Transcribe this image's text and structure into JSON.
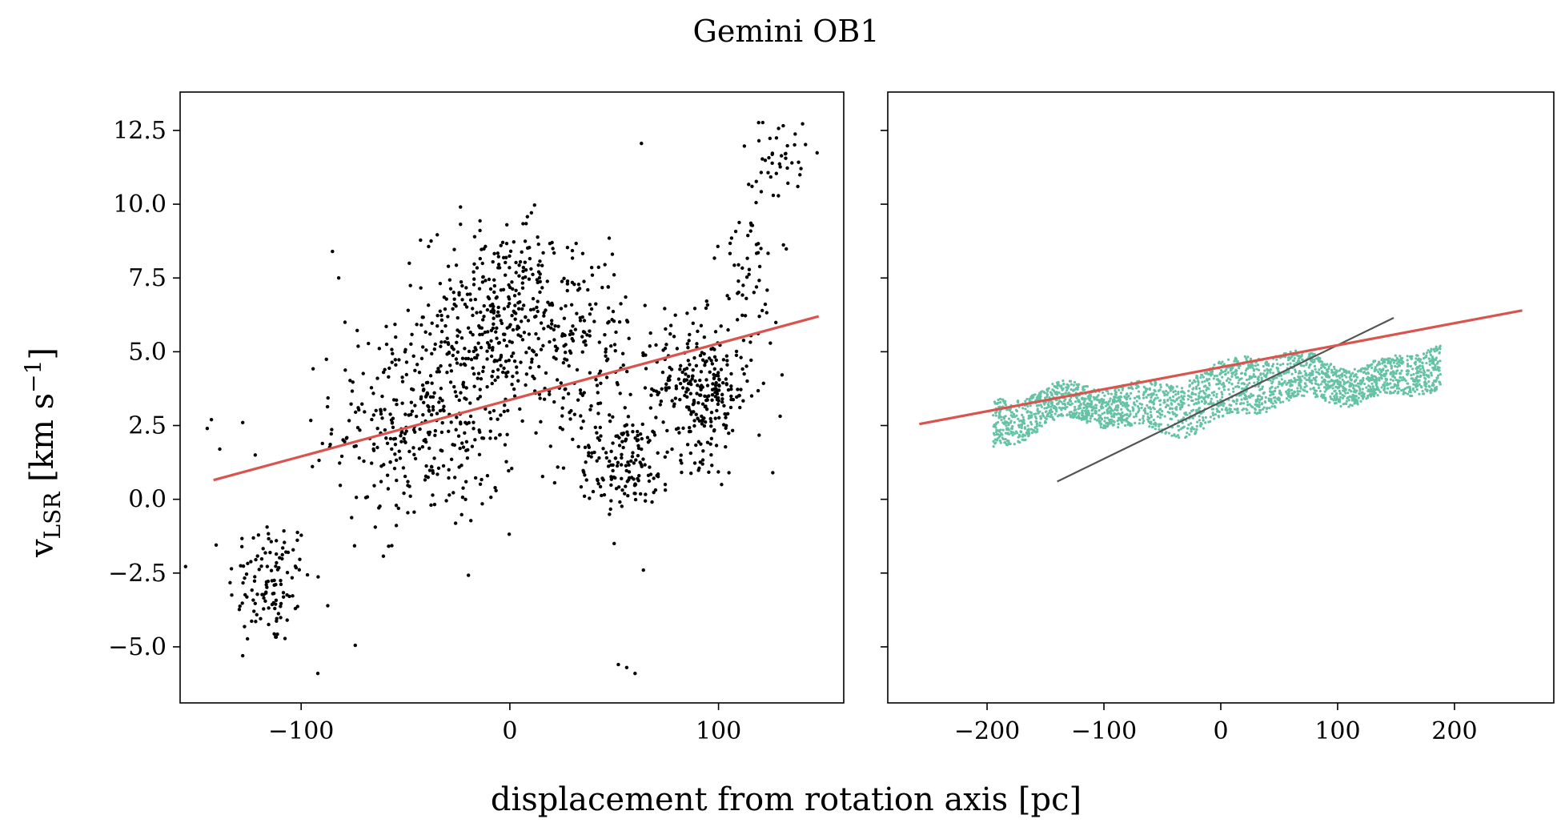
{
  "figure": {
    "title": "Gemini OB1",
    "xlabel": "displacement from rotation axis [pc]",
    "ylabel_main": "v",
    "ylabel_sub": "LSR",
    "ylabel_unit_pre": " [km s",
    "ylabel_unit_sup": "−1",
    "ylabel_unit_post": "]"
  },
  "colors": {
    "points_left": "#000000",
    "points_right": "#66c2a5",
    "fit_line": "#d9534f",
    "black_line": "#555555"
  },
  "chart_data": [
    {
      "type": "scatter",
      "panel": "left",
      "xlim": [
        -158,
        160
      ],
      "ylim": [
        -6.9,
        13.8
      ],
      "xticks": [
        -100,
        0,
        100
      ],
      "xtick_labels": [
        "−100",
        "0",
        "100"
      ],
      "yticks": [
        -5.0,
        -2.5,
        0.0,
        2.5,
        5.0,
        7.5,
        10.0,
        12.5
      ],
      "ytick_labels": [
        "−5.0",
        "−2.5",
        "0.0",
        "2.5",
        "5.0",
        "7.5",
        "10.0",
        "12.5"
      ],
      "grid": false,
      "clusters": [
        {
          "x": -115,
          "y": -2.8,
          "sx": 10,
          "sy": 1.1,
          "n": 120
        },
        {
          "x": -40,
          "y": 2.6,
          "sx": 22,
          "sy": 1.8,
          "n": 380
        },
        {
          "x": -5,
          "y": 6.3,
          "sx": 18,
          "sy": 1.5,
          "n": 300
        },
        {
          "x": 30,
          "y": 5.2,
          "sx": 20,
          "sy": 2.0,
          "n": 220
        },
        {
          "x": 55,
          "y": 1.2,
          "sx": 12,
          "sy": 0.8,
          "n": 140
        },
        {
          "x": 92,
          "y": 3.7,
          "sx": 12,
          "sy": 1.2,
          "n": 290
        },
        {
          "x": 115,
          "y": 8.0,
          "sx": 7,
          "sy": 1.8,
          "n": 60
        },
        {
          "x": 130,
          "y": 11.8,
          "sx": 6,
          "sy": 0.7,
          "n": 35
        }
      ],
      "points": [
        [
          -145,
          2.4
        ],
        [
          -143,
          2.7
        ],
        [
          -139,
          1.7
        ],
        [
          -128,
          2.6
        ],
        [
          -122,
          1.5
        ],
        [
          -128,
          -5.3
        ],
        [
          -92,
          -5.9
        ],
        [
          -85,
          8.4
        ],
        [
          -82,
          7.5
        ],
        [
          -79,
          6.0
        ],
        [
          52,
          -5.6
        ],
        [
          56,
          -5.7
        ],
        [
          60,
          -5.9
        ],
        [
          64,
          -2.4
        ],
        [
          50,
          -1.5
        ],
        [
          138,
          10.6
        ],
        [
          126,
          0.9
        ],
        [
          105,
          0.9
        ]
      ],
      "fit_line": {
        "x": [
          -142,
          148
        ],
        "y": [
          0.65,
          6.2
        ]
      }
    },
    {
      "type": "scatter",
      "panel": "right",
      "xlim": [
        -285,
        285
      ],
      "ylim": [
        -6.9,
        13.8
      ],
      "xticks": [
        -200,
        -100,
        0,
        100,
        200
      ],
      "xtick_labels": [
        "−200",
        "−100",
        "0",
        "100",
        "200"
      ],
      "yticks": [
        -5.0,
        -2.5,
        0.0,
        2.5,
        5.0,
        7.5,
        10.0,
        12.5
      ],
      "band": {
        "x_range": [
          -195,
          188
        ],
        "center_start": 3.6,
        "center_slope": 0.0048,
        "half_width": 0.95,
        "n": 2600
      },
      "fit_line": {
        "x": [
          -258,
          258
        ],
        "y": [
          2.55,
          6.4
        ]
      },
      "black_line": {
        "x": [
          -140,
          148
        ],
        "y": [
          0.6,
          6.15
        ]
      }
    }
  ]
}
